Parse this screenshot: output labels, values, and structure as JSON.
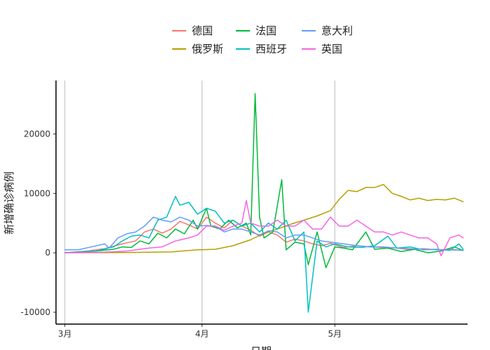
{
  "chart_data": {
    "type": "line",
    "xlabel": "日期",
    "ylabel": "新增确诊病例",
    "xlim": [
      "2020-02-28",
      "2020-05-31"
    ],
    "ylim": [
      -12000,
      29000
    ],
    "x_ticks": [
      {
        "date": "2020-03-01",
        "label": "3月"
      },
      {
        "date": "2020-04-01",
        "label": "4月"
      },
      {
        "date": "2020-05-01",
        "label": "5月"
      }
    ],
    "y_ticks": [
      {
        "value": -10000,
        "label": "-10000"
      },
      {
        "value": 0,
        "label": "0"
      },
      {
        "value": 10000,
        "label": "10000"
      },
      {
        "value": 20000,
        "label": "20000"
      }
    ],
    "grid": "vertical major lines at month ticks",
    "legend_position": "top",
    "series": [
      {
        "name": "德国",
        "color": "#F8766D",
        "points": [
          [
            "2020-03-01",
            0
          ],
          [
            "2020-03-06",
            300
          ],
          [
            "2020-03-10",
            700
          ],
          [
            "2020-03-14",
            1500
          ],
          [
            "2020-03-17",
            2000
          ],
          [
            "2020-03-19",
            3500
          ],
          [
            "2020-03-21",
            4000
          ],
          [
            "2020-03-23",
            3300
          ],
          [
            "2020-03-25",
            4000
          ],
          [
            "2020-03-27",
            5300
          ],
          [
            "2020-03-29",
            4700
          ],
          [
            "2020-03-31",
            4000
          ],
          [
            "2020-04-02",
            6000
          ],
          [
            "2020-04-04",
            5000
          ],
          [
            "2020-04-06",
            4200
          ],
          [
            "2020-04-08",
            5500
          ],
          [
            "2020-04-10",
            4500
          ],
          [
            "2020-04-12",
            3800
          ],
          [
            "2020-04-14",
            2800
          ],
          [
            "2020-04-16",
            3500
          ],
          [
            "2020-04-18",
            3000
          ],
          [
            "2020-04-20",
            1800
          ],
          [
            "2020-04-22",
            2300
          ],
          [
            "2020-04-24",
            2000
          ],
          [
            "2020-04-26",
            1500
          ],
          [
            "2020-04-28",
            1200
          ],
          [
            "2020-04-30",
            1600
          ],
          [
            "2020-05-03",
            900
          ],
          [
            "2020-05-06",
            1200
          ],
          [
            "2020-05-09",
            1000
          ],
          [
            "2020-05-12",
            900
          ],
          [
            "2020-05-15",
            800
          ],
          [
            "2020-05-18",
            500
          ],
          [
            "2020-05-21",
            700
          ],
          [
            "2020-05-24",
            500
          ],
          [
            "2020-05-27",
            600
          ],
          [
            "2020-05-30",
            400
          ]
        ]
      },
      {
        "name": "俄罗斯",
        "color": "#B79F00",
        "points": [
          [
            "2020-03-01",
            0
          ],
          [
            "2020-03-15",
            50
          ],
          [
            "2020-03-25",
            150
          ],
          [
            "2020-03-31",
            500
          ],
          [
            "2020-04-04",
            600
          ],
          [
            "2020-04-08",
            1200
          ],
          [
            "2020-04-12",
            2200
          ],
          [
            "2020-04-15",
            3300
          ],
          [
            "2020-04-18",
            4000
          ],
          [
            "2020-04-21",
            4800
          ],
          [
            "2020-04-24",
            5500
          ],
          [
            "2020-04-27",
            6200
          ],
          [
            "2020-04-30",
            7100
          ],
          [
            "2020-05-02",
            9000
          ],
          [
            "2020-05-04",
            10500
          ],
          [
            "2020-05-06",
            10300
          ],
          [
            "2020-05-08",
            11000
          ],
          [
            "2020-05-10",
            11000
          ],
          [
            "2020-05-12",
            11500
          ],
          [
            "2020-05-14",
            10000
          ],
          [
            "2020-05-16",
            9500
          ],
          [
            "2020-05-18",
            8900
          ],
          [
            "2020-05-20",
            9200
          ],
          [
            "2020-05-22",
            8800
          ],
          [
            "2020-05-24",
            9000
          ],
          [
            "2020-05-26",
            8900
          ],
          [
            "2020-05-28",
            9200
          ],
          [
            "2020-05-30",
            8600
          ]
        ]
      },
      {
        "name": "法国",
        "color": "#00BA38",
        "points": [
          [
            "2020-03-01",
            0
          ],
          [
            "2020-03-08",
            300
          ],
          [
            "2020-03-12",
            600
          ],
          [
            "2020-03-14",
            1000
          ],
          [
            "2020-03-16",
            900
          ],
          [
            "2020-03-18",
            2000
          ],
          [
            "2020-03-20",
            1500
          ],
          [
            "2020-03-22",
            3300
          ],
          [
            "2020-03-24",
            2500
          ],
          [
            "2020-03-26",
            4000
          ],
          [
            "2020-03-28",
            3200
          ],
          [
            "2020-03-30",
            5500
          ],
          [
            "2020-03-31",
            4000
          ],
          [
            "2020-04-02",
            7500
          ],
          [
            "2020-04-03",
            4500
          ],
          [
            "2020-04-05",
            4000
          ],
          [
            "2020-04-07",
            5500
          ],
          [
            "2020-04-09",
            4200
          ],
          [
            "2020-04-11",
            5000
          ],
          [
            "2020-04-12",
            3000
          ],
          [
            "2020-04-13",
            26800
          ],
          [
            "2020-04-14",
            6000
          ],
          [
            "2020-04-15",
            2500
          ],
          [
            "2020-04-17",
            3500
          ],
          [
            "2020-04-19",
            12300
          ],
          [
            "2020-04-20",
            500
          ],
          [
            "2020-04-22",
            1800
          ],
          [
            "2020-04-24",
            1500
          ],
          [
            "2020-04-25",
            -2000
          ],
          [
            "2020-04-27",
            3500
          ],
          [
            "2020-04-29",
            -2500
          ],
          [
            "2020-05-01",
            1000
          ],
          [
            "2020-05-03",
            800
          ],
          [
            "2020-05-05",
            500
          ],
          [
            "2020-05-08",
            3500
          ],
          [
            "2020-05-10",
            600
          ],
          [
            "2020-05-13",
            800
          ],
          [
            "2020-05-16",
            200
          ],
          [
            "2020-05-19",
            600
          ],
          [
            "2020-05-22",
            0
          ],
          [
            "2020-05-25",
            300
          ],
          [
            "2020-05-28",
            1000
          ],
          [
            "2020-05-30",
            400
          ]
        ]
      },
      {
        "name": "西班牙",
        "color": "#00BFC4",
        "points": [
          [
            "2020-03-01",
            0
          ],
          [
            "2020-03-08",
            300
          ],
          [
            "2020-03-12",
            1000
          ],
          [
            "2020-03-14",
            2000
          ],
          [
            "2020-03-16",
            2800
          ],
          [
            "2020-03-18",
            3000
          ],
          [
            "2020-03-20",
            2500
          ],
          [
            "2020-03-22",
            5500
          ],
          [
            "2020-03-24",
            6000
          ],
          [
            "2020-03-26",
            9500
          ],
          [
            "2020-03-27",
            8000
          ],
          [
            "2020-03-29",
            8500
          ],
          [
            "2020-03-31",
            6500
          ],
          [
            "2020-04-02",
            7500
          ],
          [
            "2020-04-04",
            7000
          ],
          [
            "2020-04-06",
            5000
          ],
          [
            "2020-04-08",
            5500
          ],
          [
            "2020-04-10",
            4500
          ],
          [
            "2020-04-12",
            5000
          ],
          [
            "2020-04-14",
            3500
          ],
          [
            "2020-04-16",
            5000
          ],
          [
            "2020-04-18",
            4000
          ],
          [
            "2020-04-20",
            5500
          ],
          [
            "2020-04-22",
            2000
          ],
          [
            "2020-04-24",
            3500
          ],
          [
            "2020-04-25",
            -10000
          ],
          [
            "2020-04-27",
            2000
          ],
          [
            "2020-04-29",
            1000
          ],
          [
            "2020-05-01",
            1500
          ],
          [
            "2020-05-04",
            1000
          ],
          [
            "2020-05-07",
            900
          ],
          [
            "2020-05-10",
            1200
          ],
          [
            "2020-05-13",
            2800
          ],
          [
            "2020-05-15",
            800
          ],
          [
            "2020-05-18",
            1000
          ],
          [
            "2020-05-21",
            500
          ],
          [
            "2020-05-24",
            600
          ],
          [
            "2020-05-27",
            400
          ],
          [
            "2020-05-29",
            1500
          ],
          [
            "2020-05-30",
            600
          ]
        ]
      },
      {
        "name": "意大利",
        "color": "#619CFF",
        "points": [
          [
            "2020-03-01",
            500
          ],
          [
            "2020-03-04",
            500
          ],
          [
            "2020-03-07",
            1000
          ],
          [
            "2020-03-10",
            1500
          ],
          [
            "2020-03-11",
            800
          ],
          [
            "2020-03-13",
            2500
          ],
          [
            "2020-03-15",
            3200
          ],
          [
            "2020-03-17",
            3500
          ],
          [
            "2020-03-19",
            4500
          ],
          [
            "2020-03-21",
            6000
          ],
          [
            "2020-03-23",
            5500
          ],
          [
            "2020-03-25",
            5200
          ],
          [
            "2020-03-27",
            6000
          ],
          [
            "2020-03-29",
            5500
          ],
          [
            "2020-03-31",
            4500
          ],
          [
            "2020-04-02",
            4600
          ],
          [
            "2020-04-04",
            4500
          ],
          [
            "2020-04-06",
            3500
          ],
          [
            "2020-04-08",
            4000
          ],
          [
            "2020-04-10",
            4000
          ],
          [
            "2020-04-12",
            3500
          ],
          [
            "2020-04-14",
            3000
          ],
          [
            "2020-04-16",
            3700
          ],
          [
            "2020-04-18",
            3500
          ],
          [
            "2020-04-20",
            2500
          ],
          [
            "2020-04-22",
            3000
          ],
          [
            "2020-04-24",
            3000
          ],
          [
            "2020-04-26",
            2500
          ],
          [
            "2020-04-28",
            2000
          ],
          [
            "2020-04-30",
            1800
          ],
          [
            "2020-05-03",
            1500
          ],
          [
            "2020-05-06",
            1200
          ],
          [
            "2020-05-09",
            1000
          ],
          [
            "2020-05-12",
            1000
          ],
          [
            "2020-05-15",
            800
          ],
          [
            "2020-05-18",
            700
          ],
          [
            "2020-05-21",
            600
          ],
          [
            "2020-05-24",
            500
          ],
          [
            "2020-05-27",
            500
          ],
          [
            "2020-05-30",
            400
          ]
        ]
      },
      {
        "name": "英国",
        "color": "#F564E3",
        "points": [
          [
            "2020-03-01",
            0
          ],
          [
            "2020-03-10",
            100
          ],
          [
            "2020-03-15",
            300
          ],
          [
            "2020-03-20",
            800
          ],
          [
            "2020-03-23",
            1000
          ],
          [
            "2020-03-26",
            2000
          ],
          [
            "2020-03-29",
            2500
          ],
          [
            "2020-03-31",
            3000
          ],
          [
            "2020-04-02",
            4500
          ],
          [
            "2020-04-04",
            4500
          ],
          [
            "2020-04-06",
            3800
          ],
          [
            "2020-04-08",
            4500
          ],
          [
            "2020-04-10",
            5000
          ],
          [
            "2020-04-11",
            8800
          ],
          [
            "2020-04-12",
            5000
          ],
          [
            "2020-04-14",
            4500
          ],
          [
            "2020-04-16",
            4500
          ],
          [
            "2020-04-18",
            5500
          ],
          [
            "2020-04-20",
            4500
          ],
          [
            "2020-04-22",
            4500
          ],
          [
            "2020-04-24",
            5500
          ],
          [
            "2020-04-26",
            4000
          ],
          [
            "2020-04-28",
            4000
          ],
          [
            "2020-04-30",
            6000
          ],
          [
            "2020-05-02",
            4500
          ],
          [
            "2020-05-04",
            4500
          ],
          [
            "2020-05-06",
            5500
          ],
          [
            "2020-05-08",
            4500
          ],
          [
            "2020-05-10",
            3500
          ],
          [
            "2020-05-12",
            3500
          ],
          [
            "2020-05-14",
            3000
          ],
          [
            "2020-05-16",
            3500
          ],
          [
            "2020-05-18",
            3000
          ],
          [
            "2020-05-20",
            2500
          ],
          [
            "2020-05-22",
            2500
          ],
          [
            "2020-05-24",
            1500
          ],
          [
            "2020-05-25",
            -500
          ],
          [
            "2020-05-27",
            2500
          ],
          [
            "2020-05-29",
            3000
          ],
          [
            "2020-05-30",
            2500
          ]
        ]
      }
    ]
  }
}
